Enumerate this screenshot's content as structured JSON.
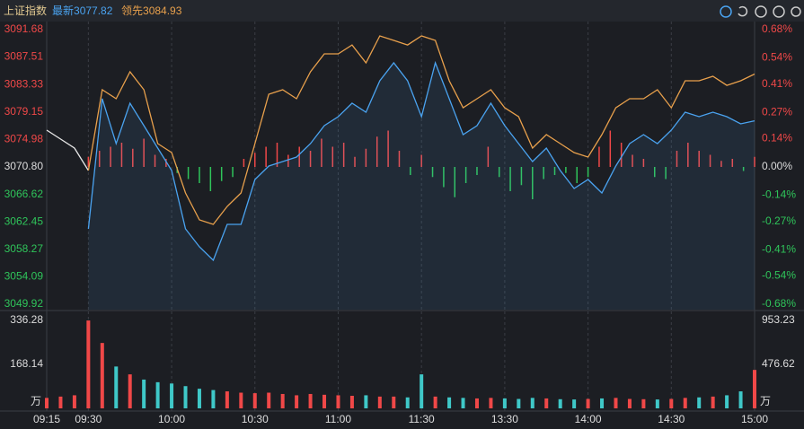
{
  "header": {
    "title": "上证指数",
    "latest": {
      "label": "最新",
      "value": 3077.82
    },
    "lead": {
      "label": "领先",
      "value": 3084.93
    }
  },
  "chart_data": [
    {
      "type": "line",
      "xlim": [
        -15,
        240
      ],
      "ylim": [
        3049.92,
        3091.68
      ],
      "yticks": [
        3091.68,
        3087.51,
        3083.33,
        3079.15,
        3074.98,
        {
          "value": 3070.8,
          "label": "3070.80"
        },
        3066.62,
        3062.45,
        3058.27,
        3054.09,
        3049.92
      ],
      "y2lim": [
        -0.68,
        0.68
      ],
      "y2ticks": [
        {
          "value": 0.68,
          "label": "0.68%"
        },
        {
          "value": 0.54,
          "label": "0.54%"
        },
        {
          "value": 0.41,
          "label": "0.41%"
        },
        {
          "value": 0.27,
          "label": "0.27%"
        },
        {
          "value": 0.14,
          "label": "0.14%"
        },
        {
          "value": 0,
          "label": "0.00%"
        },
        {
          "value": -0.14,
          "label": "-0.14%"
        },
        {
          "value": -0.27,
          "label": "-0.27%"
        },
        {
          "value": -0.41,
          "label": "-0.41%"
        },
        {
          "value": -0.54,
          "label": "-0.54%"
        },
        {
          "value": -0.68,
          "label": "-0.68%"
        }
      ],
      "up_color": "#f04848",
      "down_color": "#2fc45a",
      "flat_color": "#dddddd",
      "series": [
        {
          "color": "#e8e8e8",
          "x": [
            -15,
            -10,
            -5,
            0
          ],
          "values": [
            3076.39,
            3075.03,
            3073.66,
            3070.25
          ]
        },
        {
          "color": "#4aa3f0",
          "fill": true,
          "x": [
            0,
            5,
            10,
            15,
            20,
            25,
            30,
            35,
            40,
            45,
            50,
            55,
            60,
            65,
            70,
            75,
            80,
            85,
            90,
            95,
            100,
            105,
            110,
            115,
            120,
            125,
            130,
            135,
            140,
            145,
            150,
            155,
            160,
            165,
            170,
            175,
            180,
            185,
            190,
            195,
            200,
            205,
            210,
            215,
            220,
            225,
            230,
            235,
            240
          ],
          "values": [
            3061.39,
            3081.17,
            3074.35,
            3080.49,
            3077.08,
            3073.66,
            3070.25,
            3061.39,
            3058.66,
            3056.61,
            3062.07,
            3062.07,
            3068.89,
            3070.94,
            3071.62,
            3072.3,
            3074.35,
            3077.08,
            3078.44,
            3080.49,
            3079.12,
            3083.9,
            3086.63,
            3083.9,
            3078.44,
            3086.63,
            3081.17,
            3075.71,
            3077.08,
            3080.49,
            3077.08,
            3074.35,
            3071.62,
            3073.66,
            3070.25,
            3067.53,
            3068.89,
            3066.84,
            3070.94,
            3074.35,
            3075.71,
            3074.35,
            3076.39,
            3079.12,
            3078.44,
            3079.12,
            3078.44,
            3077.35,
            3077.82
          ]
        },
        {
          "color": "#e8a04c",
          "x": [
            0,
            5,
            10,
            15,
            20,
            25,
            30,
            35,
            40,
            45,
            50,
            55,
            60,
            65,
            70,
            75,
            80,
            85,
            90,
            95,
            100,
            105,
            110,
            115,
            120,
            125,
            130,
            135,
            140,
            145,
            150,
            155,
            160,
            165,
            170,
            175,
            180,
            185,
            190,
            195,
            200,
            205,
            210,
            215,
            220,
            225,
            230,
            235,
            240
          ],
          "values": [
            3070.25,
            3082.53,
            3081.17,
            3085.26,
            3082.53,
            3074.35,
            3072.98,
            3066.84,
            3062.75,
            3062.07,
            3064.8,
            3066.84,
            3074.35,
            3081.85,
            3082.53,
            3081.17,
            3085.26,
            3087.99,
            3087.99,
            3089.35,
            3086.63,
            3090.72,
            3090.04,
            3089.35,
            3090.72,
            3090.04,
            3083.9,
            3079.8,
            3081.17,
            3082.53,
            3079.8,
            3078.44,
            3073.66,
            3075.71,
            3074.35,
            3072.98,
            3072.3,
            3075.71,
            3079.8,
            3081.17,
            3081.17,
            3082.53,
            3079.8,
            3083.9,
            3083.9,
            3084.58,
            3083.21,
            3083.9,
            3084.93
          ]
        }
      ],
      "bars": {
        "axis": "y2",
        "x": [
          0,
          4,
          8,
          12,
          16,
          20,
          24,
          28,
          32,
          36,
          40,
          44,
          48,
          52,
          56,
          60,
          64,
          68,
          72,
          76,
          80,
          84,
          88,
          92,
          96,
          100,
          104,
          108,
          112,
          116,
          120,
          124,
          128,
          132,
          136,
          140,
          144,
          148,
          152,
          156,
          160,
          164,
          168,
          172,
          176,
          180,
          184,
          188,
          192,
          196,
          200,
          204,
          208,
          212,
          216,
          220,
          224,
          228,
          232,
          236,
          240
        ],
        "values": [
          0.05,
          0.08,
          0.1,
          0.12,
          0.09,
          0.14,
          0.06,
          0.04,
          -0.03,
          -0.06,
          -0.08,
          -0.12,
          -0.07,
          -0.05,
          0.04,
          0.07,
          0.1,
          0.12,
          0.06,
          0.1,
          0.08,
          0.14,
          0.1,
          0.12,
          0.05,
          0.09,
          0.15,
          0.18,
          0.08,
          -0.04,
          0.06,
          -0.05,
          -0.1,
          -0.15,
          -0.08,
          -0.04,
          0.1,
          -0.05,
          -0.12,
          -0.09,
          -0.16,
          -0.06,
          -0.04,
          -0.03,
          -0.08,
          -0.05,
          0.1,
          0.18,
          0.12,
          0.06,
          0.04,
          -0.05,
          -0.06,
          0.08,
          0.12,
          0.08,
          0.06,
          0.03,
          0.04,
          -0.02,
          0.05
        ]
      }
    },
    {
      "type": "bar",
      "xlim": [
        -15,
        240
      ],
      "xticks": [
        {
          "value": -15,
          "label": "09:15"
        },
        {
          "value": 0,
          "label": "09:30"
        },
        {
          "value": 30,
          "label": "10:00"
        },
        {
          "value": 60,
          "label": "10:30"
        },
        {
          "value": 90,
          "label": "11:00"
        },
        {
          "value": 120,
          "label": "11:30"
        },
        {
          "value": 150,
          "label": "13:30"
        },
        {
          "value": 180,
          "label": "14:00"
        },
        {
          "value": 210,
          "label": "14:30"
        },
        {
          "value": 240,
          "label": "15:00"
        }
      ],
      "ylim": [
        0,
        336.28
      ],
      "yticks": [
        168.14,
        336.28
      ],
      "y2lim": [
        0,
        953.23
      ],
      "y2ticks": [
        476.62,
        953.23
      ],
      "unit": "万",
      "up_color": "#f04848",
      "down_color": "#3fc8c8",
      "series": [
        {
          "x": [
            -15,
            -10,
            -5
          ],
          "values": [
            40,
            45,
            50
          ]
        },
        {
          "x": [
            0,
            5,
            10,
            15,
            20,
            25,
            30,
            35,
            40,
            45,
            50,
            55,
            60,
            65,
            70,
            75,
            80,
            85,
            90,
            95,
            100,
            105,
            110,
            115,
            120,
            125,
            130,
            135,
            140,
            145,
            150,
            155,
            160,
            165,
            170,
            175,
            180,
            185,
            190,
            195,
            200,
            205,
            210,
            215,
            220,
            225,
            230,
            235,
            240
          ],
          "values": [
            336,
            250,
            160,
            130,
            110,
            100,
            95,
            85,
            75,
            70,
            65,
            60,
            58,
            60,
            55,
            50,
            55,
            52,
            50,
            48,
            50,
            45,
            45,
            42,
            130,
            45,
            42,
            40,
            38,
            40,
            38,
            36,
            40,
            38,
            35,
            34,
            36,
            38,
            40,
            36,
            35,
            34,
            36,
            40,
            42,
            45,
            50,
            65,
            147
          ]
        }
      ]
    }
  ]
}
